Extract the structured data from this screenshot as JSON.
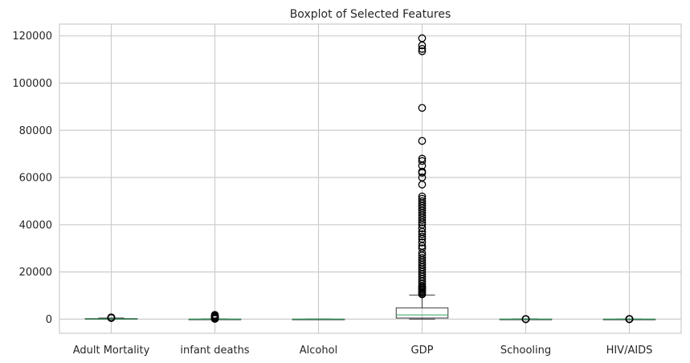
{
  "chart_data": {
    "type": "boxplot",
    "title": "Boxplot of Selected Features",
    "xlabel": "",
    "ylabel": "",
    "ylim": [
      -6000,
      125000
    ],
    "yticks": [
      0,
      20000,
      40000,
      60000,
      80000,
      100000,
      120000
    ],
    "ytick_labels": [
      "0",
      "20000",
      "40000",
      "60000",
      "80000",
      "100000",
      "120000"
    ],
    "grid": true,
    "categories": [
      "Adult Mortality",
      "infant deaths",
      "Alcohol",
      "GDP",
      "Schooling",
      "HIV/AIDS"
    ],
    "boxes": [
      {
        "name": "Adult Mortality",
        "whislo": 1,
        "q1": 74,
        "med": 144,
        "q3": 228,
        "whishi": 459,
        "fliers": [
          470,
          500,
          550,
          600,
          650,
          700,
          723
        ]
      },
      {
        "name": "infant deaths",
        "whislo": 0,
        "q1": 0,
        "med": 3,
        "q3": 22,
        "whishi": 55,
        "fliers": [
          100,
          200,
          400,
          600,
          800,
          1000,
          1200,
          1500,
          1800
        ]
      },
      {
        "name": "Alcohol",
        "whislo": 0.01,
        "q1": 0.88,
        "med": 3.76,
        "q3": 7.7,
        "whishi": 17.9,
        "fliers": []
      },
      {
        "name": "GDP",
        "whislo": 1.7,
        "q1": 463,
        "med": 1767,
        "q3": 4779,
        "whishi": 10200,
        "fliers": [
          10500,
          11000,
          11500,
          12000,
          12500,
          13000,
          13500,
          14000,
          15000,
          16000,
          17000,
          18000,
          19000,
          20000,
          21000,
          22000,
          23000,
          24000,
          25000,
          26000,
          27000,
          28000,
          30000,
          31000,
          32500,
          34000,
          35000,
          36000,
          37000,
          38500,
          40000,
          41000,
          42000,
          43000,
          44000,
          45000,
          46000,
          47000,
          48000,
          49000,
          50000,
          51000,
          52000,
          57000,
          60000,
          62000,
          62500,
          65000,
          67000,
          68000,
          75500,
          89500,
          113500,
          114500,
          116000,
          119000
        ]
      },
      {
        "name": "Schooling",
        "whislo": 4.5,
        "q1": 10.1,
        "med": 12.3,
        "q3": 14.3,
        "whishi": 20.7,
        "fliers": [
          0,
          1,
          2,
          3
        ]
      },
      {
        "name": "HIV/AIDS",
        "whislo": 0.1,
        "q1": 0.1,
        "med": 0.1,
        "q3": 0.8,
        "whishi": 1.8,
        "fliers": [
          2,
          5,
          10,
          20,
          30,
          40,
          50.6
        ]
      }
    ]
  }
}
